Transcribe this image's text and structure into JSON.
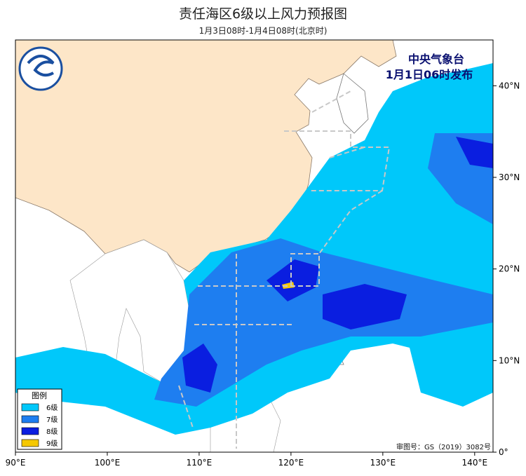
{
  "title": "责任海区6级以上风力预报图",
  "subtitle": "1月3日08时-1月4日08时(北京时)",
  "issuer": "中央气象台",
  "issue_time": "1月1日06时发布",
  "review_number": "审图号：GS（2019）3082号",
  "legend": {
    "title": "图例",
    "items": [
      {
        "label": "6级",
        "color": "#00c8fa"
      },
      {
        "label": "7级",
        "color": "#1e7ef0"
      },
      {
        "label": "8级",
        "color": "#0a1ee0"
      },
      {
        "label": "9级",
        "color": "#f5c800"
      }
    ]
  },
  "axes": {
    "xlim": [
      90,
      142
    ],
    "ylim": [
      0,
      45
    ],
    "xticks": [
      {
        "value": 90,
        "label": "90°E"
      },
      {
        "value": 100,
        "label": "100°E"
      },
      {
        "value": 110,
        "label": "110°E"
      },
      {
        "value": 120,
        "label": "120°E"
      },
      {
        "value": 130,
        "label": "130°E"
      },
      {
        "value": 140,
        "label": "140°E"
      }
    ],
    "yticks": [
      {
        "value": 0,
        "label": "0°"
      },
      {
        "value": 10,
        "label": "10°N"
      },
      {
        "value": 20,
        "label": "20°N"
      },
      {
        "value": 30,
        "label": "30°N"
      },
      {
        "value": 40,
        "label": "40°N"
      }
    ]
  }
}
